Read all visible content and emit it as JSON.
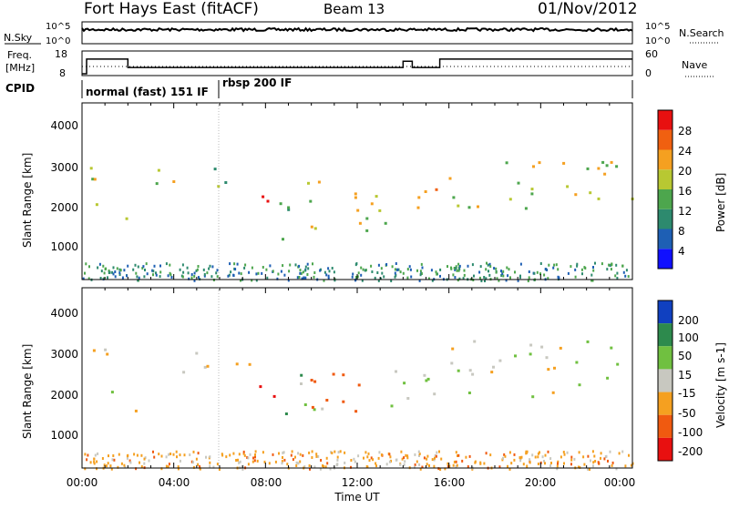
{
  "header": {
    "station": "Fort Hays East (fitACF)",
    "beam": "Beam 13",
    "date": "01/Nov/2012"
  },
  "noise_panel": {
    "left_label": "N.Sky",
    "right_label": "N.Search",
    "left_ticks": [
      "10^5",
      "10^0"
    ],
    "right_ticks": [
      "10^5",
      "10^0"
    ]
  },
  "freq_panel": {
    "left_label_1": "Freq.",
    "left_label_2": "[MHz]",
    "right_label": "Nave",
    "left_ticks": [
      "18",
      "8"
    ],
    "right_ticks": [
      "60",
      "0"
    ]
  },
  "cpid": {
    "label": "CPID",
    "segments": [
      "normal (fast) 151 IF",
      "rbsp 200 IF"
    ]
  },
  "power_panel": {
    "ylabel": "Slant Range [km]",
    "yticks": [
      "1000",
      "2000",
      "3000",
      "4000"
    ],
    "colorbar_label": "Power [dB]",
    "colorbar_ticks": [
      "4",
      "8",
      "12",
      "16",
      "20",
      "24",
      "28"
    ]
  },
  "velocity_panel": {
    "ylabel": "Slant Range [km]",
    "yticks": [
      "1000",
      "2000",
      "3000",
      "4000"
    ],
    "colorbar_label": "Velocity [m s-1]",
    "colorbar_ticks": [
      "200",
      "100",
      "50",
      "15",
      "-15",
      "-50",
      "-100",
      "-200"
    ]
  },
  "xaxis": {
    "label": "Time UT",
    "ticks": [
      "00:00",
      "04:00",
      "08:00",
      "12:00",
      "16:00",
      "20:00",
      "00:00"
    ]
  },
  "chart_data": {
    "type": "heatmap",
    "x_range_hours": [
      0,
      24
    ],
    "y_range_km": [
      0,
      4500
    ],
    "frequency_mhz": {
      "x_hours": [
        0,
        0.2,
        1.9,
        2.0,
        13.9,
        14.0,
        14.3,
        14.4,
        15.5,
        15.6,
        24
      ],
      "values": [
        8,
        15,
        15,
        11,
        11,
        14,
        14,
        11,
        11,
        15,
        15
      ]
    },
    "cpid_segments": [
      {
        "label": "normal (fast) 151 IF",
        "start_hour": 0,
        "end_hour": 6
      },
      {
        "label": "rbsp 200 IF",
        "start_hour": 6,
        "end_hour": 24
      }
    ],
    "echo_bands": [
      {
        "x": [
          0,
          1.5
        ],
        "y": [
          1700,
          3000
        ],
        "power_db": 16,
        "velocity_ms": -5
      },
      {
        "x": [
          1.8,
          2.6
        ],
        "y": [
          1400,
          2000
        ],
        "power_db": 14,
        "velocity_ms": -5
      },
      {
        "x": [
          3.2,
          7.5
        ],
        "y": [
          2400,
          3000
        ],
        "power_db": 15,
        "velocity_ms": -10
      },
      {
        "x": [
          7.5,
          8.5
        ],
        "y": [
          1500,
          2400
        ],
        "power_db": 26,
        "velocity_ms": -120
      },
      {
        "x": [
          8.5,
          10.5
        ],
        "y": [
          1000,
          2400
        ],
        "power_db": 14,
        "velocity_ms": 30
      },
      {
        "x": [
          9.5,
          12.5
        ],
        "y": [
          1200,
          2600
        ],
        "power_db": 18,
        "velocity_ms": -80
      },
      {
        "x": [
          12.5,
          15.5
        ],
        "y": [
          1400,
          2600
        ],
        "power_db": 20,
        "velocity_ms": 20
      },
      {
        "x": [
          15.8,
          24
        ],
        "y": [
          1800,
          3200
        ],
        "power_db": 18,
        "velocity_ms": 0
      }
    ]
  }
}
